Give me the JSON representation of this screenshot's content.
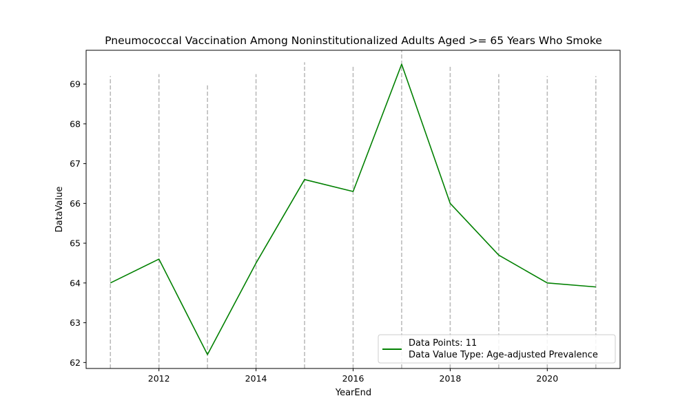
{
  "chart_data": {
    "type": "line",
    "title": "Pneumococcal Vaccination Among Noninstitutionalized Adults Aged >= 65 Years Who Smoke",
    "xlabel": "YearEnd",
    "ylabel": "DataValue",
    "x": [
      2011,
      2012,
      2013,
      2014,
      2015,
      2016,
      2017,
      2018,
      2019,
      2020,
      2021
    ],
    "series": [
      {
        "values": [
          64.0,
          64.6,
          62.2,
          64.5,
          66.6,
          66.3,
          69.5,
          66.0,
          64.7,
          64.0,
          63.9
        ],
        "color": "#008000"
      }
    ],
    "xlim": [
      2010.5,
      2021.5
    ],
    "ylim": [
      61.85,
      69.85
    ],
    "x_ticks": [
      2012,
      2014,
      2016,
      2018,
      2020
    ],
    "y_ticks": [
      62,
      63,
      64,
      65,
      66,
      67,
      68,
      69
    ],
    "vertical_dashed_lines": {
      "color": "#bbbbbb",
      "tops": [
        69.2,
        69.25,
        69.0,
        69.25,
        69.55,
        69.45,
        69.85,
        69.45,
        69.25,
        69.2,
        69.2
      ]
    },
    "legend": {
      "position": "lower-right",
      "lines": [
        "Data Points: 11",
        "Data Value Type: Age-adjusted Prevalence"
      ]
    },
    "grid": false
  }
}
